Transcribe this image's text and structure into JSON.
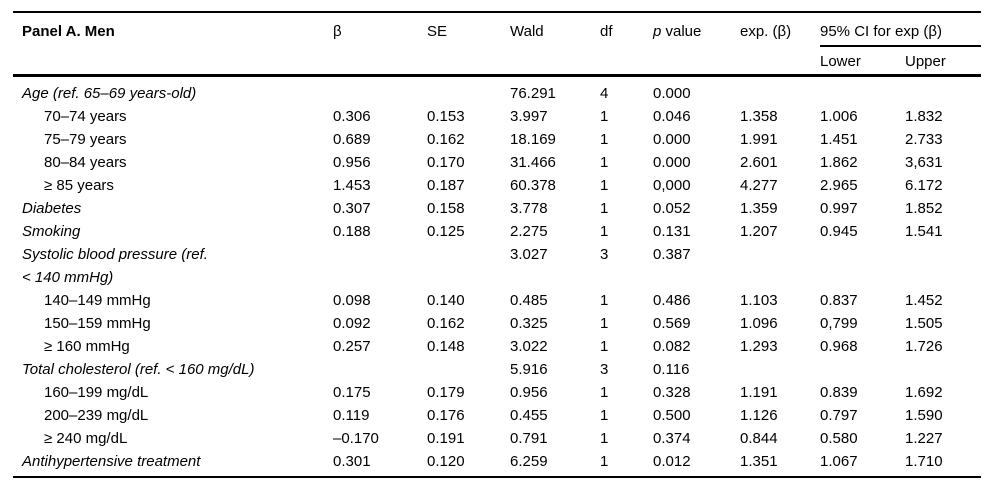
{
  "table": {
    "panel_title": "Panel A. Men",
    "columns": {
      "beta": "β",
      "se": "SE",
      "wald": "Wald",
      "df": "df",
      "p_italic": "p",
      "p_rest": " value",
      "exp": "exp. (β)",
      "ci_group": "95% CI for exp (β)",
      "lower": "Lower",
      "upper": "Upper"
    },
    "rows": [
      {
        "label": "Age (ref. 65–69 years-old)",
        "style": "category",
        "beta": "",
        "se": "",
        "wald": "76.291",
        "df": "4",
        "p": "0.000",
        "exp": "",
        "lower": "",
        "upper": ""
      },
      {
        "label": "70–74 years",
        "style": "indent",
        "beta": "0.306",
        "se": "0.153",
        "wald": "3.997",
        "df": "1",
        "p": "0.046",
        "exp": "1.358",
        "lower": "1.006",
        "upper": "1.832"
      },
      {
        "label": "75–79 years",
        "style": "indent",
        "beta": "0.689",
        "se": "0.162",
        "wald": "18.169",
        "df": "1",
        "p": "0.000",
        "exp": "1.991",
        "lower": "1.451",
        "upper": "2.733"
      },
      {
        "label": "80–84 years",
        "style": "indent",
        "beta": "0.956",
        "se": "0.170",
        "wald": "31.466",
        "df": "1",
        "p": "0.000",
        "exp": "2.601",
        "lower": "1.862",
        "upper": "3,631"
      },
      {
        "label": "≥ 85 years",
        "style": "indent",
        "beta": "1.453",
        "se": "0.187",
        "wald": "60.378",
        "df": "1",
        "p": "0,000",
        "exp": "4.277",
        "lower": "2.965",
        "upper": "6.172"
      },
      {
        "label": "Diabetes",
        "style": "category",
        "beta": "0.307",
        "se": "0.158",
        "wald": "3.778",
        "df": "1",
        "p": "0.052",
        "exp": "1.359",
        "lower": "0.997",
        "upper": "1.852"
      },
      {
        "label": "Smoking",
        "style": "category",
        "beta": "0.188",
        "se": "0.125",
        "wald": "2.275",
        "df": "1",
        "p": "0.131",
        "exp": "1.207",
        "lower": "0.945",
        "upper": "1.541"
      },
      {
        "label": "Systolic blood pressure (ref.\n< 140 mmHg)",
        "style": "category",
        "beta": "",
        "se": "",
        "wald": "3.027",
        "df": "3",
        "p": "0.387",
        "exp": "",
        "lower": "",
        "upper": ""
      },
      {
        "label": "140–149 mmHg",
        "style": "indent",
        "beta": "0.098",
        "se": "0.140",
        "wald": "0.485",
        "df": "1",
        "p": "0.486",
        "exp": "1.103",
        "lower": "0.837",
        "upper": "1.452"
      },
      {
        "label": "150–159 mmHg",
        "style": "indent",
        "beta": "0.092",
        "se": "0.162",
        "wald": "0.325",
        "df": "1",
        "p": "0.569",
        "exp": "1.096",
        "lower": "0,799",
        "upper": "1.505"
      },
      {
        "label": "≥ 160 mmHg",
        "style": "indent",
        "beta": "0.257",
        "se": "0.148",
        "wald": "3.022",
        "df": "1",
        "p": "0.082",
        "exp": "1.293",
        "lower": "0.968",
        "upper": "1.726"
      },
      {
        "label": "Total cholesterol (ref. < 160 mg/dL)",
        "style": "category",
        "beta": "",
        "se": "",
        "wald": "5.916",
        "df": "3",
        "p": "0.116",
        "exp": "",
        "lower": "",
        "upper": ""
      },
      {
        "label": "160–199 mg/dL",
        "style": "indent",
        "beta": "0.175",
        "se": "0.179",
        "wald": "0.956",
        "df": "1",
        "p": "0.328",
        "exp": "1.191",
        "lower": "0.839",
        "upper": "1.692"
      },
      {
        "label": "200–239 mg/dL",
        "style": "indent",
        "beta": "0.119",
        "se": "0.176",
        "wald": "0.455",
        "df": "1",
        "p": "0.500",
        "exp": "1.126",
        "lower": "0.797",
        "upper": "1.590"
      },
      {
        "label": "≥ 240 mg/dL",
        "style": "indent",
        "beta": "–0.170",
        "se": "0.191",
        "wald": "0.791",
        "df": "1",
        "p": "0.374",
        "exp": "0.844",
        "lower": "0.580",
        "upper": "1.227"
      },
      {
        "label": "Antihypertensive treatment",
        "style": "category",
        "beta": "0.301",
        "se": "0.120",
        "wald": "6.259",
        "df": "1",
        "p": "0.012",
        "exp": "1.351",
        "lower": "1.067",
        "upper": "1.710"
      }
    ]
  }
}
